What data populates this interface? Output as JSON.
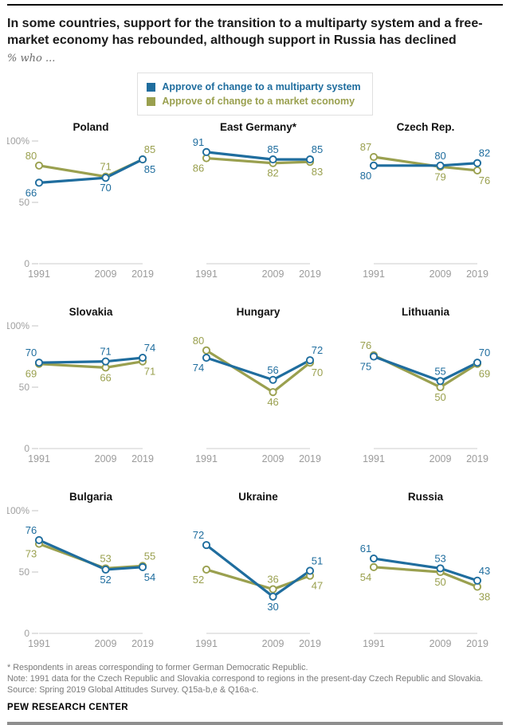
{
  "header": {
    "title": "In some countries, support for the transition to a multiparty system and a free-market economy has rebounded, although support in Russia has declined",
    "subtitle": "% who ..."
  },
  "legend": {
    "items": [
      {
        "key": "multiparty",
        "label": "Approve of change to a multiparty system",
        "color": "#1f6d9e"
      },
      {
        "key": "market",
        "label": "Approve of change to a market economy",
        "color": "#9aa04f"
      }
    ]
  },
  "chart_data": {
    "type": "line",
    "x": [
      1991,
      2009,
      2019
    ],
    "x_tick_labels": [
      "1991",
      "2009",
      "2019"
    ],
    "ylim": [
      0,
      100
    ],
    "yticks": [
      0,
      50,
      100
    ],
    "ytick_labels": [
      "0",
      "50",
      "100%"
    ],
    "legend_position": "top-center",
    "grid": false,
    "series_colors": {
      "multiparty": "#1f6d9e",
      "market": "#9aa04f"
    },
    "series_names": {
      "multiparty": "Approve of change to a multiparty system",
      "market": "Approve of change to a market economy"
    },
    "panels": [
      {
        "title": "Poland",
        "multiparty": [
          66,
          70,
          85
        ],
        "market": [
          80,
          71,
          85
        ]
      },
      {
        "title": "East Germany*",
        "multiparty": [
          91,
          85,
          85
        ],
        "market": [
          86,
          82,
          83
        ]
      },
      {
        "title": "Czech Rep.",
        "multiparty": [
          80,
          80,
          82
        ],
        "market": [
          87,
          79,
          76
        ]
      },
      {
        "title": "Slovakia",
        "multiparty": [
          70,
          71,
          74
        ],
        "market": [
          69,
          66,
          71
        ]
      },
      {
        "title": "Hungary",
        "multiparty": [
          74,
          56,
          72
        ],
        "market": [
          80,
          46,
          70
        ]
      },
      {
        "title": "Lithuania",
        "multiparty": [
          75,
          55,
          70
        ],
        "market": [
          76,
          50,
          69
        ]
      },
      {
        "title": "Bulgaria",
        "multiparty": [
          76,
          52,
          54
        ],
        "market": [
          73,
          53,
          55
        ]
      },
      {
        "title": "Ukraine",
        "multiparty": [
          72,
          30,
          51
        ],
        "market": [
          52,
          36,
          47
        ]
      },
      {
        "title": "Russia",
        "multiparty": [
          61,
          53,
          43
        ],
        "market": [
          54,
          50,
          38
        ]
      }
    ]
  },
  "colors": {
    "axis_line": "#cccccc",
    "tick_text": "#a0a0a0",
    "year_text": "#9b9b9b"
  },
  "footer": {
    "asterisk_note": "* Respondents in areas corresponding to former German Democratic Republic.",
    "note": "Note: 1991 data for the Czech Republic and Slovakia correspond to regions in the present-day Czech Republic and Slovakia.",
    "source": "Source: Spring 2019 Global Attitudes Survey. Q15a-b,e & Q16a-c.",
    "brand": "PEW RESEARCH CENTER"
  }
}
